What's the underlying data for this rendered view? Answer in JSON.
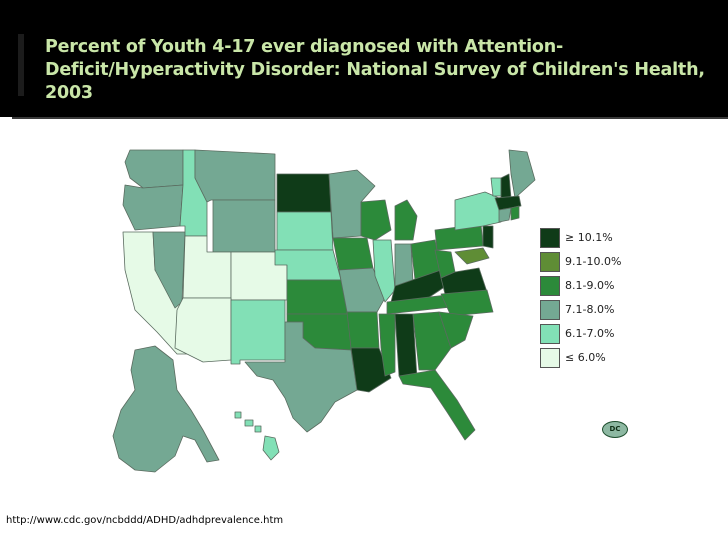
{
  "slide": {
    "title": "Percent of Youth 4-17 ever diagnosed with Attention-Deficit/Hyperactivity Disorder: National Survey of Children's Health, 2003",
    "source_url": "http://www.cdc.gov/ncbddd/ADHD/adhdprevalence.htm"
  },
  "map": {
    "dc_label": "DC",
    "colors": {
      "c1": "#0f3b18",
      "c2": "#5f8d35",
      "c3": "#2c8a3a",
      "c4": "#74a893",
      "c5": "#82e0b6",
      "c6": "#e6fae7"
    },
    "legend": [
      {
        "label": "≥ 10.1%",
        "color": "#0f3b18"
      },
      {
        "label": "9.1-10.0%",
        "color": "#5f8d35"
      },
      {
        "label": "8.1-9.0%",
        "color": "#2c8a3a"
      },
      {
        "label": "7.1-8.0%",
        "color": "#74a893"
      },
      {
        "label": "6.1-7.0%",
        "color": "#82e0b6"
      },
      {
        "label": "≤ 6.0%",
        "color": "#e6fae7"
      }
    ]
  }
}
